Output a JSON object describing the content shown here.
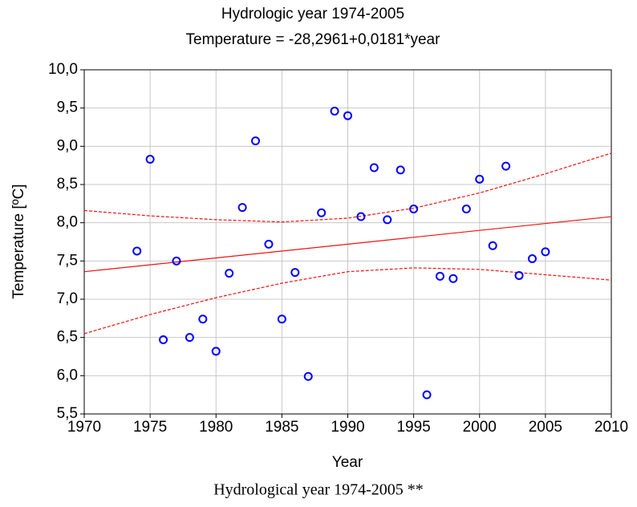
{
  "chart_data": {
    "type": "scatter",
    "title": "Hydrologic year 1974-2005",
    "subtitle": "Temperature = -28,2961+0,0181*year",
    "x_label": "Year",
    "y_label": "Temperature [ºC]",
    "caption": "Hydrological year 1974-2005 **",
    "x": [
      1974,
      1975,
      1976,
      1977,
      1978,
      1979,
      1980,
      1981,
      1982,
      1983,
      1984,
      1985,
      1986,
      1987,
      1988,
      1989,
      1990,
      1991,
      1992,
      1993,
      1994,
      1995,
      1996,
      1997,
      1998,
      1999,
      2000,
      2001,
      2002,
      2003,
      2004,
      2005
    ],
    "values": [
      7.63,
      8.83,
      6.47,
      7.5,
      6.5,
      6.74,
      6.32,
      7.34,
      8.2,
      9.07,
      7.72,
      6.74,
      7.35,
      5.99,
      8.13,
      9.46,
      9.4,
      8.08,
      8.72,
      8.04,
      8.69,
      8.18,
      5.75,
      7.3,
      7.27,
      8.18,
      8.57,
      7.7,
      8.74,
      7.31,
      7.53,
      7.62
    ],
    "color": "#0000ff",
    "fit": {
      "x": [
        1970,
        2010
      ],
      "values": [
        7.36,
        8.08
      ],
      "color": "#ee1111"
    },
    "confidence_upper": {
      "x": [
        1970,
        1975,
        1980,
        1985,
        1990,
        1995,
        2000,
        2005,
        2010
      ],
      "values": [
        8.16,
        8.09,
        8.04,
        8.01,
        8.06,
        8.19,
        8.39,
        8.64,
        8.91
      ],
      "color": "#ee1111"
    },
    "confidence_lower": {
      "x": [
        1970,
        1975,
        1980,
        1985,
        1990,
        1995,
        2000,
        2005,
        2010
      ],
      "values": [
        6.55,
        6.8,
        7.02,
        7.21,
        7.36,
        7.41,
        7.39,
        7.32,
        7.25
      ],
      "color": "#ee1111"
    },
    "xlim": [
      1970,
      2010
    ],
    "xticks": [
      1970,
      1975,
      1980,
      1985,
      1990,
      1995,
      2000,
      2005,
      2010
    ],
    "ylim": [
      5.5,
      10
    ],
    "yticks": [
      {
        "value": 5.5,
        "label": "5,5"
      },
      {
        "value": 6,
        "label": "6,0"
      },
      {
        "value": 6.5,
        "label": "6,5"
      },
      {
        "value": 7,
        "label": "7,0"
      },
      {
        "value": 7.5,
        "label": "7,5"
      },
      {
        "value": 8,
        "label": "8,0"
      },
      {
        "value": 8.5,
        "label": "8,5"
      },
      {
        "value": 9,
        "label": "9,0"
      },
      {
        "value": 9.5,
        "label": "9,5"
      },
      {
        "value": 10,
        "label": "10,0"
      }
    ],
    "grid": true
  }
}
